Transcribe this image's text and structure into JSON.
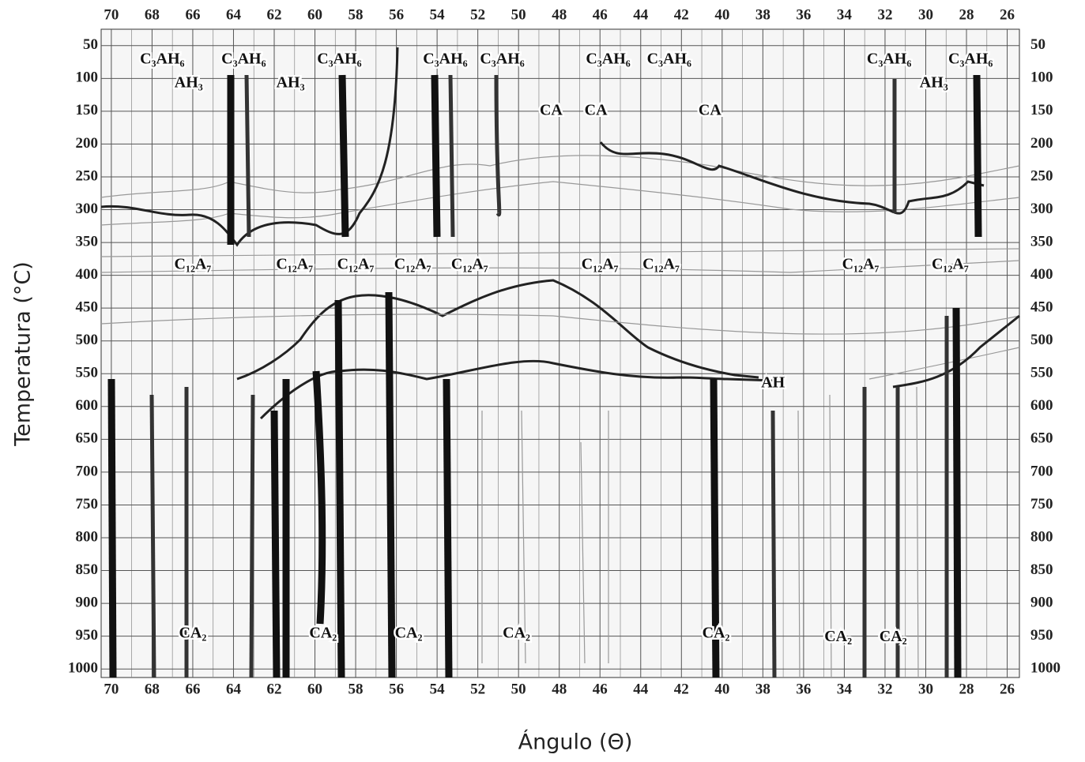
{
  "chart_data": {
    "type": "contour",
    "x_label": "Ángulo (Θ)",
    "y_label": "Temperatura (°C)",
    "xlim": [
      70.5,
      25.4
    ],
    "ylim": [
      25,
      1013
    ],
    "xticks": [
      70,
      68,
      66,
      64,
      62,
      60,
      58,
      56,
      54,
      52,
      50,
      48,
      46,
      44,
      42,
      40,
      38,
      36,
      34,
      32,
      30,
      28,
      26
    ],
    "yticks": [
      50,
      100,
      150,
      200,
      250,
      300,
      350,
      400,
      450,
      500,
      550,
      600,
      650,
      700,
      750,
      800,
      850,
      900,
      950,
      1000
    ],
    "grid": true,
    "annotations": [
      {
        "text": "C₃AH₆",
        "x": 67.5,
        "y": 72
      },
      {
        "text": "C₃AH₆",
        "x": 63.5,
        "y": 72
      },
      {
        "text": "C₃AH₆",
        "x": 58.8,
        "y": 72
      },
      {
        "text": "C₃AH₆",
        "x": 53.6,
        "y": 72
      },
      {
        "text": "C₃AH₆",
        "x": 50.8,
        "y": 72
      },
      {
        "text": "C₃AH₆",
        "x": 45.6,
        "y": 72
      },
      {
        "text": "C₃AH₆",
        "x": 42.6,
        "y": 72
      },
      {
        "text": "C₃AH₆",
        "x": 31.8,
        "y": 72
      },
      {
        "text": "C₃AH₆",
        "x": 27.8,
        "y": 72
      },
      {
        "text": "AH₃",
        "x": 66.2,
        "y": 108
      },
      {
        "text": "AH₃",
        "x": 61.2,
        "y": 108
      },
      {
        "text": "AH₃",
        "x": 29.6,
        "y": 108
      },
      {
        "text": "CA",
        "x": 48.4,
        "y": 150
      },
      {
        "text": "CA",
        "x": 46.2,
        "y": 150
      },
      {
        "text": "CA",
        "x": 40.6,
        "y": 150
      },
      {
        "text": "C₁₂A₇",
        "x": 66,
        "y": 385
      },
      {
        "text": "C₁₂A₇",
        "x": 61,
        "y": 385
      },
      {
        "text": "C₁₂A₇",
        "x": 58,
        "y": 385
      },
      {
        "text": "C₁₂A₇",
        "x": 55.2,
        "y": 385
      },
      {
        "text": "C₁₂A₇",
        "x": 52.4,
        "y": 385
      },
      {
        "text": "C₁₂A₇",
        "x": 46,
        "y": 385
      },
      {
        "text": "C₁₂A₇",
        "x": 43,
        "y": 385
      },
      {
        "text": "C₁₂A₇",
        "x": 33.2,
        "y": 385
      },
      {
        "text": "C₁₂A₇",
        "x": 28.8,
        "y": 385
      },
      {
        "text": "AH",
        "x": 37.5,
        "y": 565
      },
      {
        "text": "CA₂",
        "x": 66,
        "y": 947
      },
      {
        "text": "CA₂",
        "x": 59.6,
        "y": 947
      },
      {
        "text": "CA₂",
        "x": 55.4,
        "y": 947
      },
      {
        "text": "CA₂",
        "x": 50.1,
        "y": 947
      },
      {
        "text": "CA₂",
        "x": 40.3,
        "y": 947
      },
      {
        "text": "CA₂",
        "x": 34.3,
        "y": 952
      },
      {
        "text": "CA₂",
        "x": 31.6,
        "y": 952
      }
    ]
  }
}
